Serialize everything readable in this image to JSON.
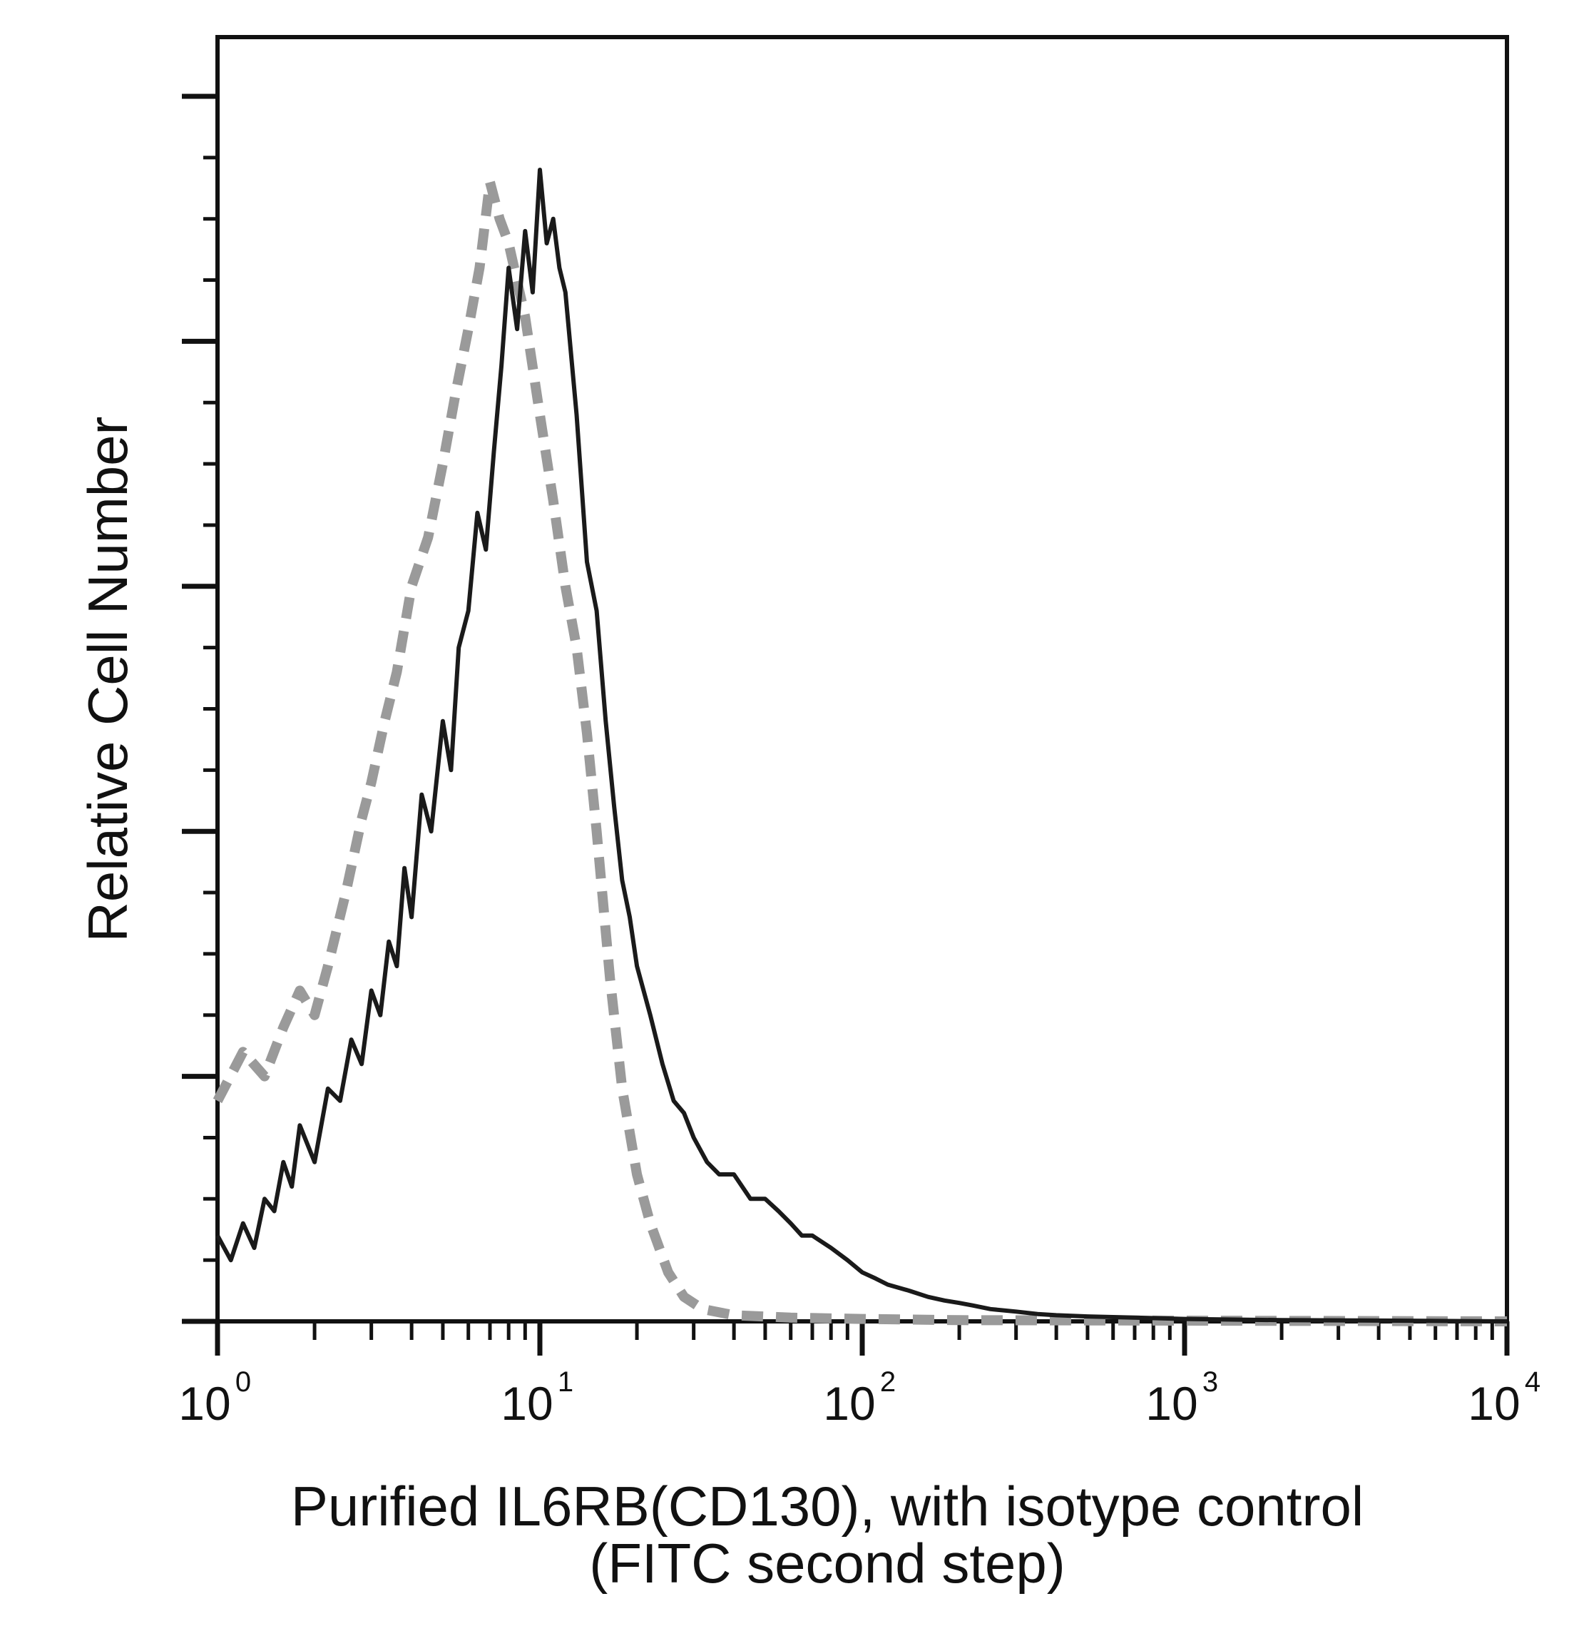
{
  "chart_data": {
    "type": "line",
    "title": "",
    "ylabel": "Relative Cell Number",
    "xlabel_line1": "Purified IL6RB(CD130), with isotype control",
    "xlabel_line2": "(FITC second step)",
    "x_scale": "log",
    "xlim": [
      1,
      10000
    ],
    "ylim": [
      0,
      100
    ],
    "x_ticks": [
      {
        "base": "10",
        "exp": "0",
        "value": 1
      },
      {
        "base": "10",
        "exp": "1",
        "value": 10
      },
      {
        "base": "10",
        "exp": "2",
        "value": 100
      },
      {
        "base": "10",
        "exp": "3",
        "value": 1000
      },
      {
        "base": "10",
        "exp": "4",
        "value": 10000
      }
    ],
    "y_tick_labels": "none",
    "grid": false,
    "legend": "none",
    "series": [
      {
        "style": "dashed",
        "color": "#9a9a9a",
        "x": [
          1.0,
          1.2,
          1.4,
          1.6,
          1.8,
          2.0,
          2.2,
          2.5,
          2.8,
          3.0,
          3.3,
          3.6,
          4.0,
          4.5,
          5.0,
          5.5,
          6.0,
          6.5,
          7.0,
          7.5,
          8.0,
          9.0,
          10.0,
          11.0,
          12.0,
          13.0,
          14.0,
          15.0,
          16.5,
          18.0,
          20.0,
          22.0,
          25.0,
          28.0,
          32.0,
          40.0,
          60.0,
          100.0,
          200.0,
          10000.0
        ],
        "y": [
          18,
          22,
          20,
          24,
          27,
          25,
          29,
          35,
          41,
          44,
          49,
          53,
          60,
          64,
          70,
          76,
          81,
          86,
          93,
          90,
          88,
          82,
          74,
          67,
          60,
          55,
          48,
          40,
          28,
          19,
          12,
          8,
          4,
          2,
          1,
          0.5,
          0.3,
          0.2,
          0.1,
          0
        ]
      },
      {
        "style": "solid",
        "color": "#1a1a1a",
        "x": [
          1.0,
          1.1,
          1.2,
          1.3,
          1.4,
          1.5,
          1.6,
          1.7,
          1.8,
          2.0,
          2.2,
          2.4,
          2.6,
          2.8,
          3.0,
          3.2,
          3.4,
          3.6,
          3.8,
          4.0,
          4.3,
          4.6,
          5.0,
          5.3,
          5.6,
          6.0,
          6.4,
          6.8,
          7.2,
          7.6,
          8.0,
          8.5,
          9.0,
          9.5,
          10.0,
          10.5,
          11.0,
          11.5,
          12.0,
          13.0,
          14.0,
          15.0,
          16.0,
          17.0,
          18.0,
          19.0,
          20.0,
          22.0,
          24.0,
          26.0,
          28.0,
          30.0,
          33.0,
          36.0,
          40.0,
          45.0,
          50.0,
          55.0,
          60.0,
          65.0,
          70.0,
          80.0,
          90.0,
          100.0,
          110.0,
          120.0,
          140.0,
          160.0,
          180.0,
          200.0,
          220.0,
          250.0,
          300.0,
          350.0,
          400.0,
          500.0,
          700.0,
          1000.0,
          2000.0,
          5000.0,
          10000.0
        ],
        "y": [
          7,
          5,
          8,
          6,
          10,
          9,
          13,
          11,
          16,
          13,
          19,
          18,
          23,
          21,
          27,
          25,
          31,
          29,
          37,
          33,
          43,
          40,
          49,
          45,
          55,
          58,
          66,
          63,
          71,
          78,
          86,
          81,
          89,
          84,
          94,
          88,
          90,
          86,
          84,
          74,
          62,
          58,
          49,
          42,
          36,
          33,
          29,
          25,
          21,
          18,
          17,
          15,
          13,
          12,
          12,
          10,
          10,
          9,
          8,
          7,
          7,
          6,
          5,
          4,
          3.5,
          3,
          2.5,
          2,
          1.7,
          1.5,
          1.3,
          1,
          0.8,
          0.6,
          0.5,
          0.4,
          0.3,
          0.2,
          0.1,
          0.05,
          0
        ]
      }
    ]
  }
}
